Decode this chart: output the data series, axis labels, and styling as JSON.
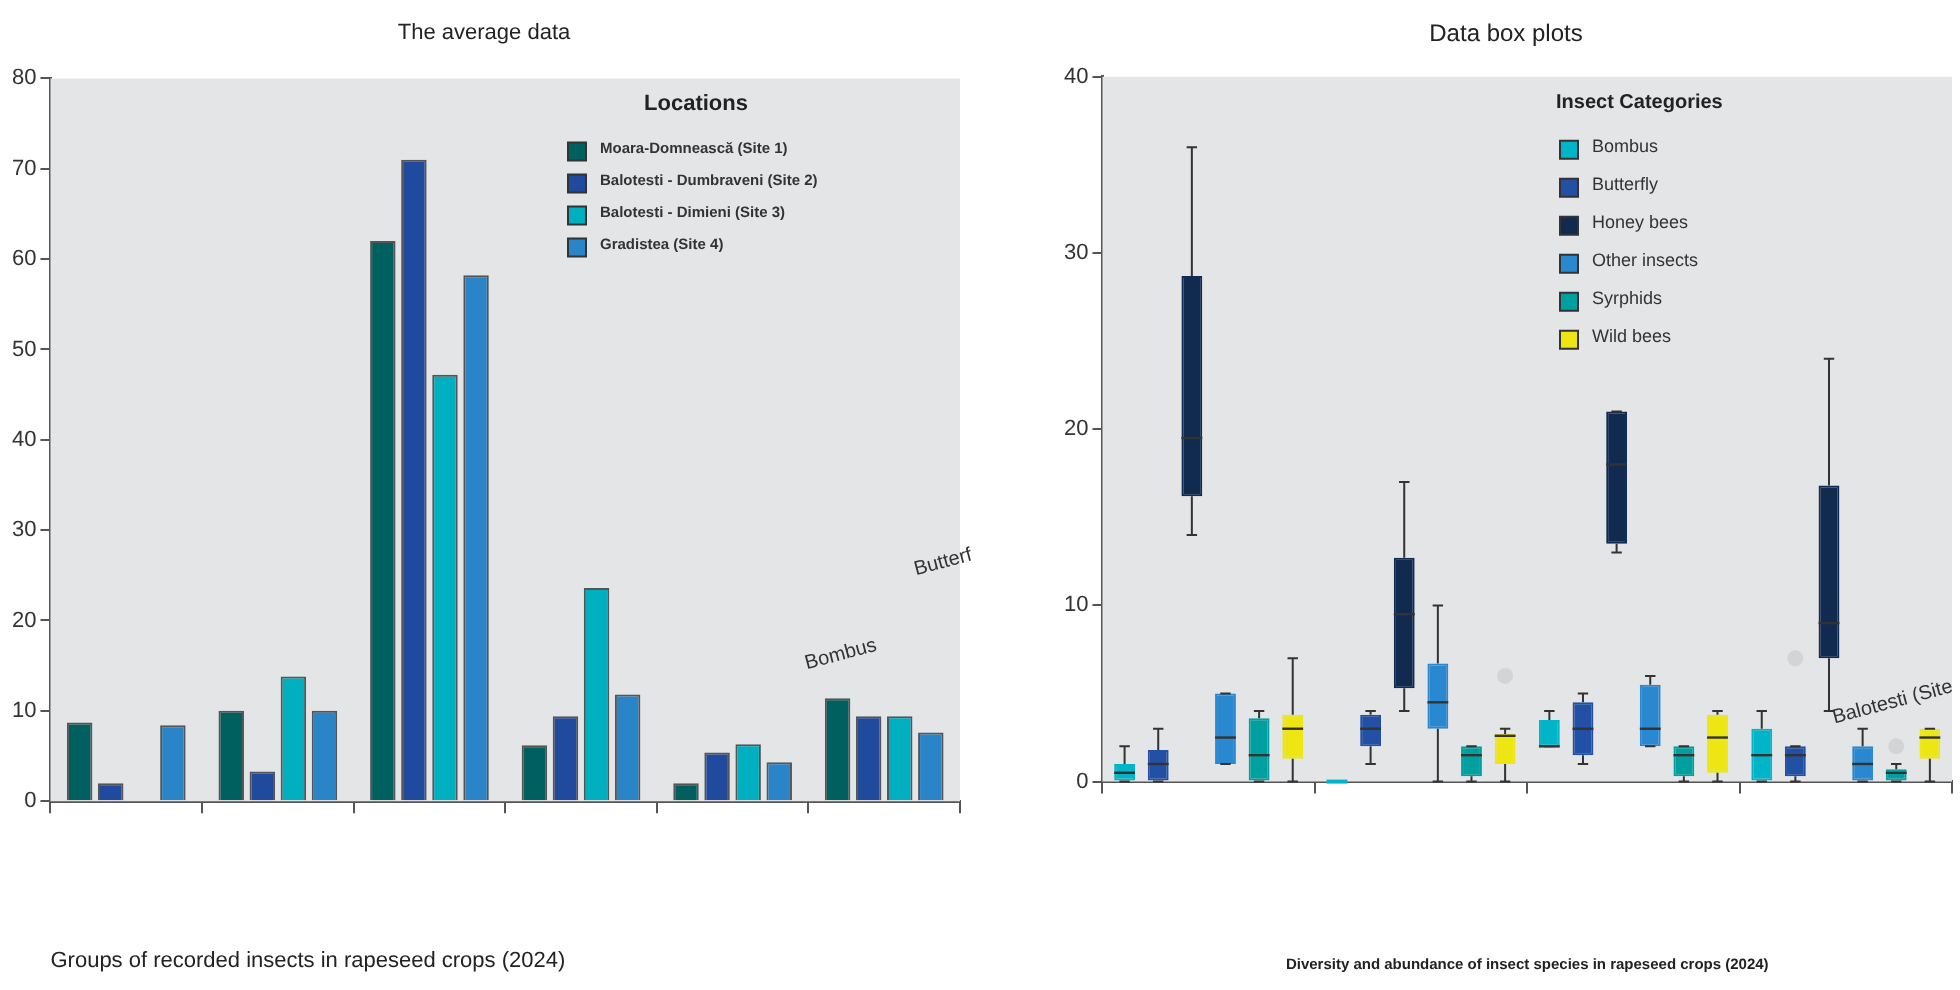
{
  "chart_data": [
    {
      "type": "bar",
      "title": "The average data",
      "xlabel": "Groups of recorded insects in rapeseed crops (2024)",
      "legend_title": "Locations",
      "legend": "top right",
      "grid": false,
      "categories": [
        null,
        null,
        null,
        null,
        null,
        null
      ],
      "ylim": [
        0,
        80
      ],
      "yticks": [
        0,
        10,
        20,
        30,
        40,
        50,
        60,
        70,
        80
      ],
      "annotations": [
        "Bombus",
        "Butterf"
      ],
      "series": [
        {
          "name": "Moara-Domnească (Site 1)",
          "color": "#00605f",
          "values": [
            8.7,
            10,
            62,
            6.2,
            2,
            11.4
          ]
        },
        {
          "name": "Balotesti - Dumbraveni (Site 2)",
          "color": "#1f4a9e",
          "values": [
            2,
            3.3,
            71,
            9.4,
            5.4,
            9.4
          ]
        },
        {
          "name": "Balotesti - Dimieni (Site 3)",
          "color": "#00b0c0",
          "values": [
            0,
            13.8,
            47.2,
            23.6,
            6.3,
            9.4
          ]
        },
        {
          "name": "Gradistea (Site 4)",
          "color": "#2a85c8",
          "values": [
            8.4,
            10,
            58.2,
            11.8,
            4.3,
            7.6
          ]
        }
      ]
    },
    {
      "type": "box",
      "title": "Data box plots",
      "xlabel": "Diversity and abundance of insect species in rapeseed crops (2024)",
      "legend_title": "Insect Categories",
      "legend": "top right",
      "grid": false,
      "categories": [
        null,
        null,
        null,
        null
      ],
      "ylim": [
        0,
        40
      ],
      "yticks": [
        0,
        10,
        20,
        30,
        40
      ],
      "annotations": [
        "Balotesti (Site"
      ],
      "series": [
        {
          "name": "Bombus",
          "color": "#00b5c8",
          "boxes": [
            {
              "low": 0,
              "q1": 0,
              "median": 0.5,
              "q3": 1,
              "high": 2
            },
            {
              "low": 0,
              "q1": 0,
              "median": 0,
              "q3": 0,
              "high": 0
            },
            {
              "low": 2,
              "q1": 2,
              "median": 2,
              "q3": 3.5,
              "high": 4
            },
            {
              "low": 0,
              "q1": 0,
              "median": 1.5,
              "q3": 3,
              "high": 4
            }
          ]
        },
        {
          "name": "Butterfly",
          "color": "#2150a5",
          "boxes": [
            {
              "low": 0,
              "q1": 0,
              "median": 1,
              "q3": 1.8,
              "high": 3
            },
            {
              "low": 1,
              "q1": 2,
              "median": 3,
              "q3": 3.8,
              "high": 4
            },
            {
              "low": 1,
              "q1": 1.5,
              "median": 3,
              "q3": 4.5,
              "high": 5
            },
            {
              "low": 0,
              "q1": 0.3,
              "median": 1.5,
              "q3": 2,
              "high": 2,
              "outliers": [
                7
              ]
            }
          ]
        },
        {
          "name": "Honey bees",
          "color": "#112a4f",
          "boxes": [
            {
              "low": 14,
              "q1": 16.2,
              "median": 19.5,
              "q3": 28.7,
              "high": 36
            },
            {
              "low": 4,
              "q1": 5.3,
              "median": 9.5,
              "q3": 12.7,
              "high": 17
            },
            {
              "low": 13,
              "q1": 13.5,
              "median": 18,
              "q3": 21,
              "high": 21
            },
            {
              "low": 4,
              "q1": 7,
              "median": 9,
              "q3": 16.8,
              "high": 24
            }
          ]
        },
        {
          "name": "Other insects",
          "color": "#2a88d0",
          "boxes": [
            {
              "low": 1,
              "q1": 1,
              "median": 2.5,
              "q3": 5,
              "high": 5
            },
            {
              "low": 0,
              "q1": 3,
              "median": 4.5,
              "q3": 6.7,
              "high": 10
            },
            {
              "low": 2,
              "q1": 2,
              "median": 3,
              "q3": 5.5,
              "high": 6
            },
            {
              "low": 0,
              "q1": 0,
              "median": 1,
              "q3": 2,
              "high": 3
            }
          ]
        },
        {
          "name": "Syrphids",
          "color": "#00a0a0",
          "boxes": [
            {
              "low": 0,
              "q1": 0,
              "median": 1.5,
              "q3": 3.6,
              "high": 4
            },
            {
              "low": 0,
              "q1": 0.3,
              "median": 1.5,
              "q3": 2,
              "high": 2
            },
            {
              "low": 0,
              "q1": 0.3,
              "median": 1.5,
              "q3": 2,
              "high": 2
            },
            {
              "low": 0,
              "q1": 0,
              "median": 0.5,
              "q3": 0.7,
              "high": 1,
              "outliers": [
                2
              ]
            }
          ]
        },
        {
          "name": "Wild bees",
          "color": "#ede613",
          "boxes": [
            {
              "low": 0,
              "q1": 1.3,
              "median": 3,
              "q3": 3.8,
              "high": 7
            },
            {
              "low": 0,
              "q1": 1,
              "median": 2.6,
              "q3": 2.7,
              "high": 3,
              "outliers": [
                6
              ]
            },
            {
              "low": 0,
              "q1": 0.5,
              "median": 2.5,
              "q3": 3.8,
              "high": 4
            },
            {
              "low": 0,
              "q1": 1.3,
              "median": 2.5,
              "q3": 3,
              "high": 3
            }
          ]
        }
      ]
    }
  ]
}
